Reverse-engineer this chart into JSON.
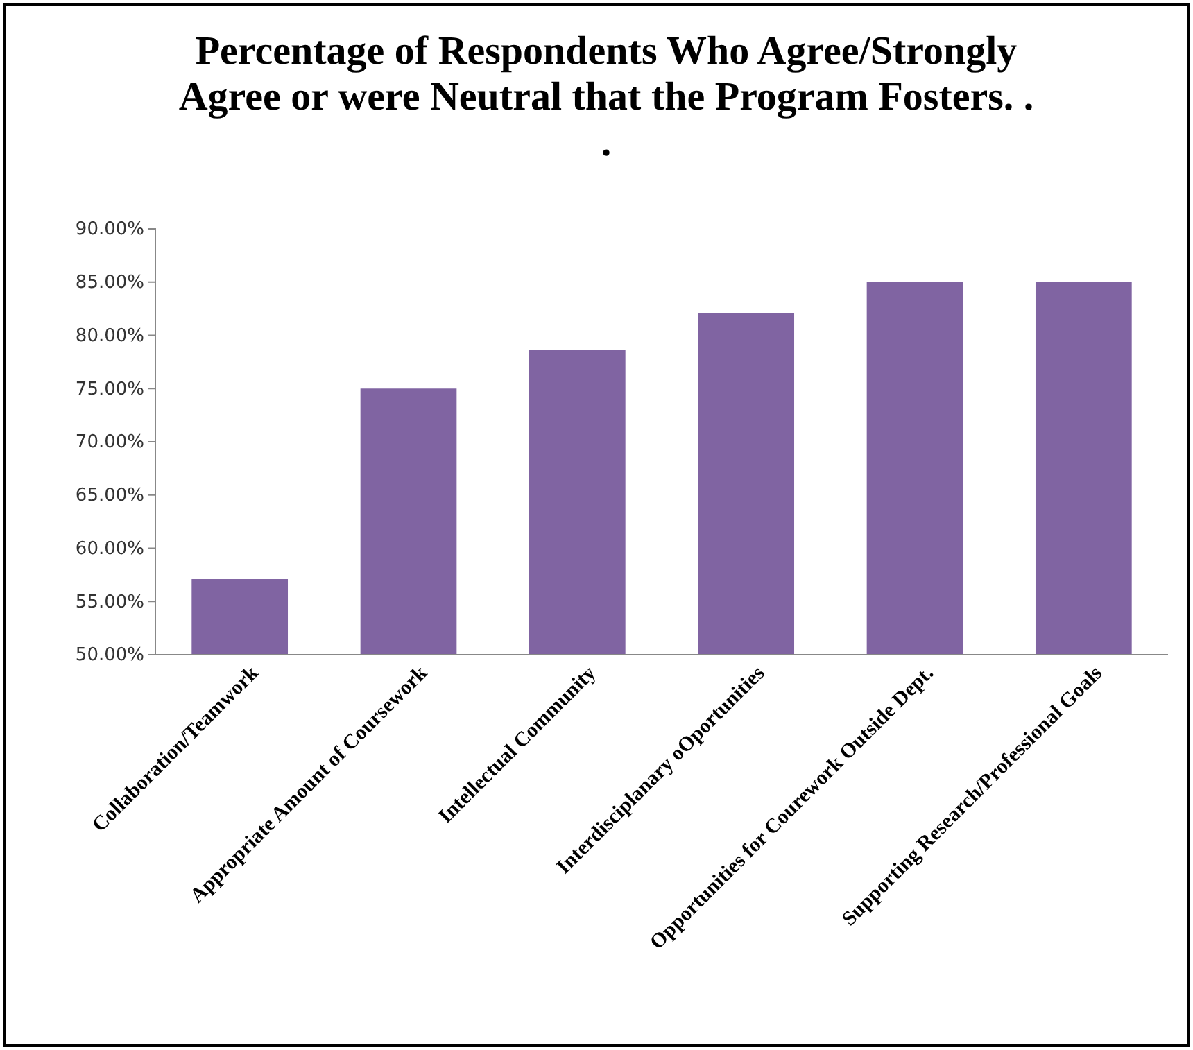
{
  "chart_data": {
    "type": "bar",
    "title": "Percentage of Respondents Who Agree/Strongly Agree or were Neutral that the Program Fosters. . .",
    "categories": [
      "Collaboration/Teamwork",
      "Appropriate Amount of Coursework",
      "Intellectual Community",
      "Interdisciplanary oOportunities",
      "Opportunities for Courework Outside  Dept.",
      "Supporting Research/Professional Goals"
    ],
    "values": [
      57.1,
      75.0,
      78.6,
      82.1,
      85.0,
      85.0
    ],
    "color": "#8064a2",
    "ylim": [
      50,
      90
    ],
    "yticks": [
      {
        "value": 50,
        "label": "50.00%"
      },
      {
        "value": 55,
        "label": "55.00%"
      },
      {
        "value": 60,
        "label": "60.00%"
      },
      {
        "value": 65,
        "label": "65.00%"
      },
      {
        "value": 70,
        "label": "70.00%"
      },
      {
        "value": 75,
        "label": "75.00%"
      },
      {
        "value": 80,
        "label": "80.00%"
      },
      {
        "value": 85,
        "label": "85.00%"
      },
      {
        "value": 90,
        "label": "90.00%"
      }
    ],
    "grid": false
  }
}
